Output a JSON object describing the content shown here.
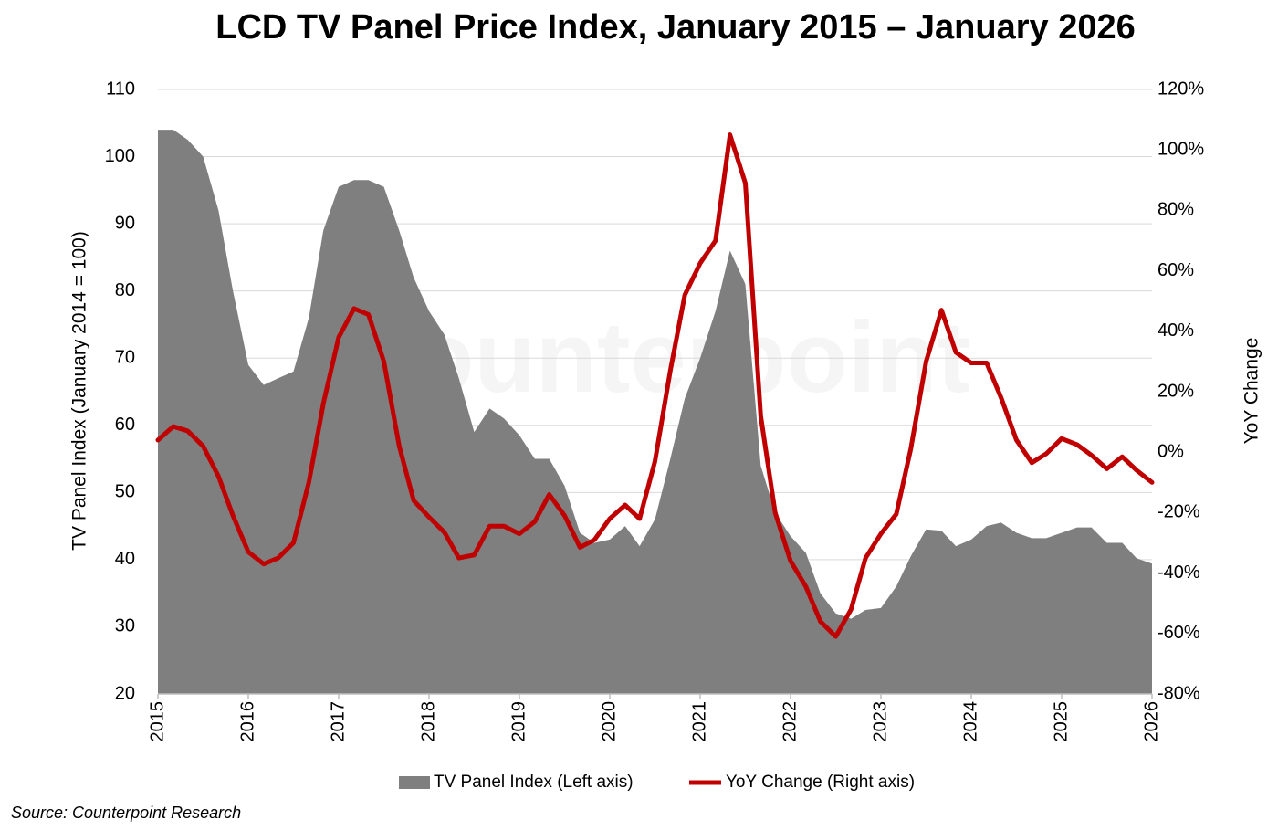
{
  "chart_data": {
    "type": "area_line",
    "title": "LCD TV Panel Price Index, January 2015 – January 2026",
    "y_label": "TV Panel Index (January 2014 = 100)",
    "y2_label": "YoY Change",
    "source": "Source: Counterpoint Research",
    "watermark": "Counterpoint",
    "x": [
      2015,
      2015.17,
      2015.33,
      2015.5,
      2015.67,
      2015.83,
      2016,
      2016.17,
      2016.33,
      2016.5,
      2016.67,
      2016.83,
      2017,
      2017.17,
      2017.33,
      2017.5,
      2017.67,
      2017.83,
      2018,
      2018.17,
      2018.33,
      2018.5,
      2018.67,
      2018.83,
      2019,
      2019.17,
      2019.33,
      2019.5,
      2019.67,
      2019.83,
      2020,
      2020.17,
      2020.33,
      2020.5,
      2020.67,
      2020.83,
      2021,
      2021.17,
      2021.33,
      2021.5,
      2021.67,
      2021.83,
      2022,
      2022.17,
      2022.33,
      2022.5,
      2022.67,
      2022.83,
      2023,
      2023.17,
      2023.33,
      2023.5,
      2023.67,
      2023.83,
      2024,
      2024.17,
      2024.33,
      2024.5,
      2024.67,
      2024.83,
      2025,
      2025.17,
      2025.33,
      2025.5,
      2025.67,
      2025.83,
      2026
    ],
    "series": [
      {
        "name": "TV Panel Index (Left axis)",
        "color": "#7f7f7f",
        "kind": "area",
        "axis": "y",
        "values": [
          104,
          104,
          102.5,
          100,
          92,
          80,
          69,
          66,
          67,
          68,
          76,
          89,
          95.5,
          96.5,
          96.5,
          95.5,
          89,
          82,
          77,
          73.5,
          67,
          59,
          62.5,
          61,
          58.5,
          55,
          55,
          51,
          44,
          42.5,
          43,
          45,
          42,
          46,
          55,
          64,
          70,
          77,
          86,
          81,
          54,
          47,
          43.5,
          41,
          35,
          32,
          31.2,
          32.5,
          32.8,
          36,
          40.5,
          44.5,
          44.3,
          42,
          43,
          45,
          45.5,
          44,
          43.2,
          43.2,
          44,
          44.8,
          44.8,
          42.5,
          42.5,
          40.2,
          39.4
        ]
      },
      {
        "name": "YoY Change (Right axis)",
        "color": "#c00000",
        "kind": "line",
        "axis": "y2",
        "values": [
          4,
          8.5,
          7,
          2,
          -8,
          -21,
          -33,
          -37,
          -35,
          -30,
          -10,
          16,
          38,
          47.5,
          45.5,
          30,
          2,
          -16,
          -21.5,
          -26.5,
          -35,
          -34,
          -24.5,
          -24.5,
          -27,
          -23,
          -14,
          -21,
          -31.5,
          -29,
          -22,
          -17.5,
          -22,
          -3,
          27,
          52,
          62.5,
          70,
          105,
          89,
          12,
          -20,
          -36,
          -44.5,
          -56,
          -61,
          -52,
          -35,
          -27,
          -20.5,
          1,
          30,
          47,
          33,
          29.5,
          29.5,
          18,
          4,
          -3.5,
          -0.5,
          4.5,
          2.5,
          -1,
          -5.5,
          -1.5,
          -6,
          -10
        ]
      }
    ],
    "xlim": [
      2015,
      2026
    ],
    "xticks": [
      2015,
      2016,
      2017,
      2018,
      2019,
      2020,
      2021,
      2022,
      2023,
      2024,
      2025,
      2026
    ],
    "ylim": [
      20,
      110
    ],
    "yticks": [
      20,
      30,
      40,
      50,
      60,
      70,
      80,
      90,
      100,
      110
    ],
    "y2lim": [
      -80,
      120
    ],
    "y2ticks": [
      {
        "value": -80,
        "label": "-80%"
      },
      {
        "value": -60,
        "label": "-60%"
      },
      {
        "value": -40,
        "label": "-40%"
      },
      {
        "value": -20,
        "label": "-20%"
      },
      {
        "value": 0,
        "label": "0%"
      },
      {
        "value": 20,
        "label": "20%"
      },
      {
        "value": 40,
        "label": "40%"
      },
      {
        "value": 60,
        "label": "60%"
      },
      {
        "value": 80,
        "label": "80%"
      },
      {
        "value": 100,
        "label": "100%"
      },
      {
        "value": 120,
        "label": "120%"
      }
    ],
    "grid": true,
    "legend": "bottom"
  }
}
